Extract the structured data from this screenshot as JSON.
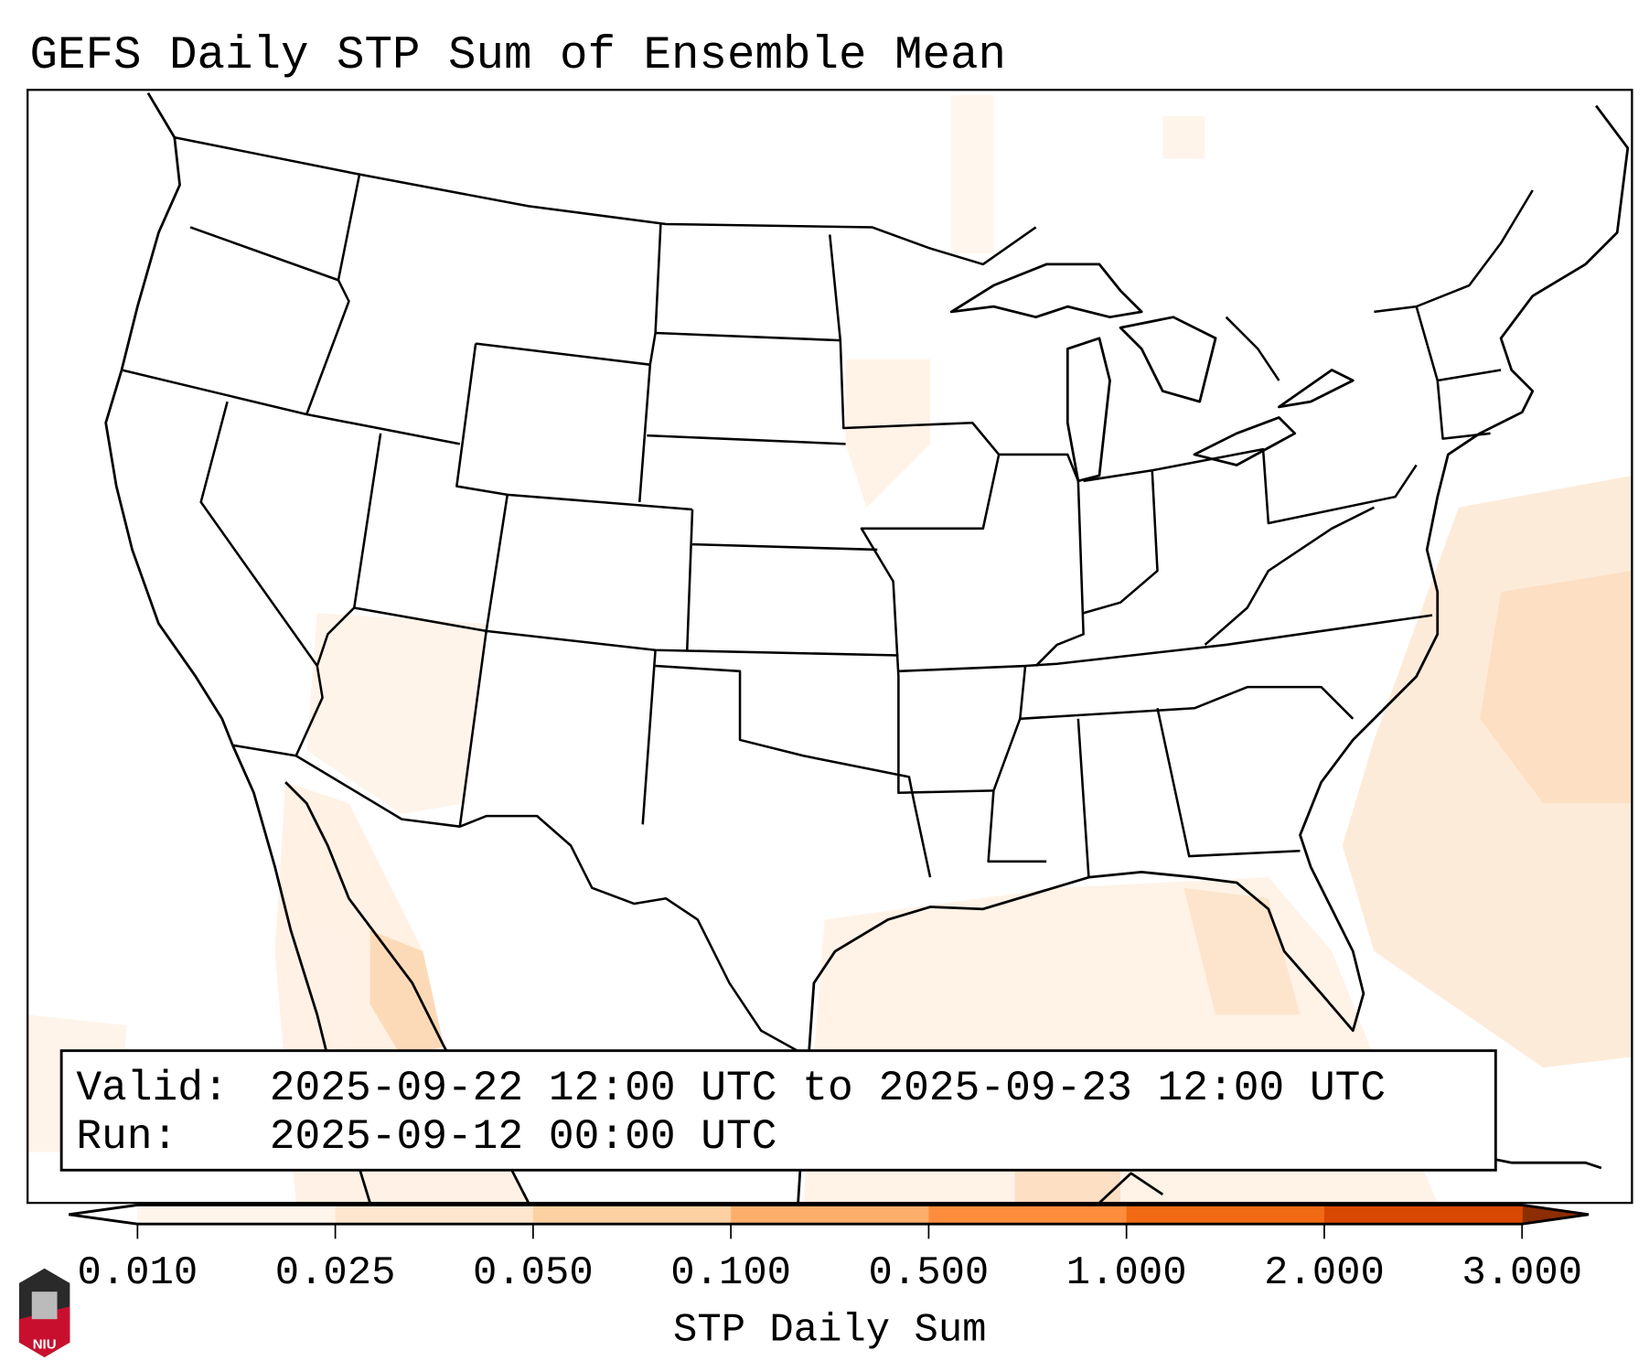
{
  "title": "GEFS Daily STP Sum of Ensemble Mean",
  "info_box": {
    "valid_label": "Valid:",
    "valid_value": "2025-09-22 12:00 UTC to 2025-09-23 12:00 UTC",
    "run_label": "Run:",
    "run_value": "2025-09-12 00:00 UTC"
  },
  "colorbar": {
    "label": "STP Daily Sum",
    "ticks": [
      "0.010",
      "0.025",
      "0.050",
      "0.100",
      "0.500",
      "1.000",
      "2.000",
      "3.000"
    ],
    "colors": [
      "#fff5eb",
      "#fee6ce",
      "#fdd0a2",
      "#fdae6b",
      "#fd8d3c",
      "#f16913",
      "#d94801"
    ],
    "under_color": "#ffffff",
    "over_color": "#8c2d04"
  },
  "logo": {
    "text": "NIU"
  }
}
